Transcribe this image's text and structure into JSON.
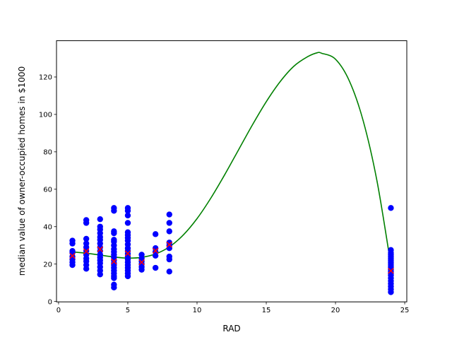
{
  "chart_data": {
    "type": "scatter",
    "title": "",
    "xlabel": "RAD",
    "ylabel": "median value of owner-occupied homes in $1000",
    "xlim": [
      -0.15,
      25.15
    ],
    "ylim": [
      -0.2,
      139.4
    ],
    "xticks": [
      0,
      5,
      10,
      15,
      20,
      25
    ],
    "yticks": [
      0,
      20,
      40,
      60,
      80,
      100,
      120
    ],
    "grid": false,
    "legend": "none",
    "colors": {
      "points": "#0000ff",
      "means": "#ff0000",
      "curve": "#008000",
      "axes": "#000000"
    },
    "series": [
      {
        "kind": "points",
        "marker": "circle",
        "points": [
          [
            1,
            19.5
          ],
          [
            1,
            21
          ],
          [
            1,
            22.5
          ],
          [
            1,
            24
          ],
          [
            1,
            26
          ],
          [
            1,
            27
          ],
          [
            1,
            31
          ],
          [
            1,
            32.5
          ],
          [
            2,
            17.5
          ],
          [
            2,
            19.5
          ],
          [
            2,
            21.5
          ],
          [
            2,
            23
          ],
          [
            2,
            25
          ],
          [
            2,
            27
          ],
          [
            2,
            29
          ],
          [
            2,
            31
          ],
          [
            2,
            33.5
          ],
          [
            2,
            42
          ],
          [
            2,
            43.5
          ],
          [
            3,
            14.5
          ],
          [
            3,
            16.5
          ],
          [
            3,
            18.5
          ],
          [
            3,
            20.5
          ],
          [
            3,
            22
          ],
          [
            3,
            23.5
          ],
          [
            3,
            25
          ],
          [
            3,
            27
          ],
          [
            3,
            29
          ],
          [
            3,
            31
          ],
          [
            3,
            33
          ],
          [
            3,
            34.5
          ],
          [
            3,
            36.5
          ],
          [
            3,
            38.5
          ],
          [
            3,
            40
          ],
          [
            3,
            44
          ],
          [
            4,
            7.5
          ],
          [
            4,
            9
          ],
          [
            4,
            12.5
          ],
          [
            4,
            13.5
          ],
          [
            4,
            15
          ],
          [
            4,
            16.5
          ],
          [
            4,
            18
          ],
          [
            4,
            19.5
          ],
          [
            4,
            20.5
          ],
          [
            4,
            22
          ],
          [
            4,
            23.5
          ],
          [
            4,
            25
          ],
          [
            4,
            26.5
          ],
          [
            4,
            28
          ],
          [
            4,
            30
          ],
          [
            4,
            32
          ],
          [
            4,
            33
          ],
          [
            4,
            36.5
          ],
          [
            4,
            37.5
          ],
          [
            4,
            48.5
          ],
          [
            4,
            50
          ],
          [
            5,
            13.5
          ],
          [
            5,
            15
          ],
          [
            5,
            16.5
          ],
          [
            5,
            18
          ],
          [
            5,
            19.5
          ],
          [
            5,
            21
          ],
          [
            5,
            22.5
          ],
          [
            5,
            24
          ],
          [
            5,
            25.5
          ],
          [
            5,
            27
          ],
          [
            5,
            28.5
          ],
          [
            5,
            30.5
          ],
          [
            5,
            32.5
          ],
          [
            5,
            34
          ],
          [
            5,
            35.5
          ],
          [
            5,
            37
          ],
          [
            5,
            42
          ],
          [
            5,
            46
          ],
          [
            5,
            48.5
          ],
          [
            5,
            50
          ],
          [
            6,
            17
          ],
          [
            6,
            18.5
          ],
          [
            6,
            20
          ],
          [
            6,
            21.5
          ],
          [
            6,
            23
          ],
          [
            6,
            25
          ],
          [
            7,
            18
          ],
          [
            7,
            24.5
          ],
          [
            7,
            26.5
          ],
          [
            7,
            28.5
          ],
          [
            7,
            36
          ],
          [
            8,
            16
          ],
          [
            8,
            22.5
          ],
          [
            8,
            24
          ],
          [
            8,
            28.5
          ],
          [
            8,
            30
          ],
          [
            8,
            31.5
          ],
          [
            8,
            37.5
          ],
          [
            8,
            42
          ],
          [
            8,
            46.5
          ],
          [
            24,
            5
          ],
          [
            24,
            6.5
          ],
          [
            24,
            8
          ],
          [
            24,
            9.5
          ],
          [
            24,
            11
          ],
          [
            24,
            12.5
          ],
          [
            24,
            14
          ],
          [
            24,
            15
          ],
          [
            24,
            16
          ],
          [
            24,
            17
          ],
          [
            24,
            18
          ],
          [
            24,
            19
          ],
          [
            24,
            20
          ],
          [
            24,
            21
          ],
          [
            24,
            22
          ],
          [
            24,
            23
          ],
          [
            24,
            24
          ],
          [
            24,
            25
          ],
          [
            24,
            26
          ],
          [
            24,
            27.5
          ],
          [
            24,
            50
          ]
        ]
      },
      {
        "kind": "means",
        "marker": "x",
        "points": [
          [
            1,
            24.4
          ],
          [
            2,
            26.8
          ],
          [
            3,
            27.9
          ],
          [
            4,
            21.4
          ],
          [
            5,
            25.7
          ],
          [
            6,
            20.98
          ],
          [
            7,
            27.1
          ],
          [
            8,
            30.4
          ],
          [
            24,
            16.4
          ]
        ]
      },
      {
        "kind": "fit-curve",
        "x": [
          1,
          2,
          3,
          4,
          5,
          6,
          7,
          8,
          9,
          10,
          11,
          12,
          13,
          14,
          15,
          16,
          17,
          18,
          18.7,
          19,
          20,
          21,
          22,
          23,
          24
        ],
        "y": [
          26.5,
          25.8,
          24.8,
          23.8,
          23.2,
          23.6,
          25.4,
          29.2,
          35.5,
          44.3,
          55.3,
          67.8,
          81.1,
          94.4,
          106.8,
          117.5,
          125.8,
          130.9,
          133,
          132.7,
          129.5,
          117.9,
          96.6,
          64.3,
          19.5
        ]
      }
    ]
  }
}
